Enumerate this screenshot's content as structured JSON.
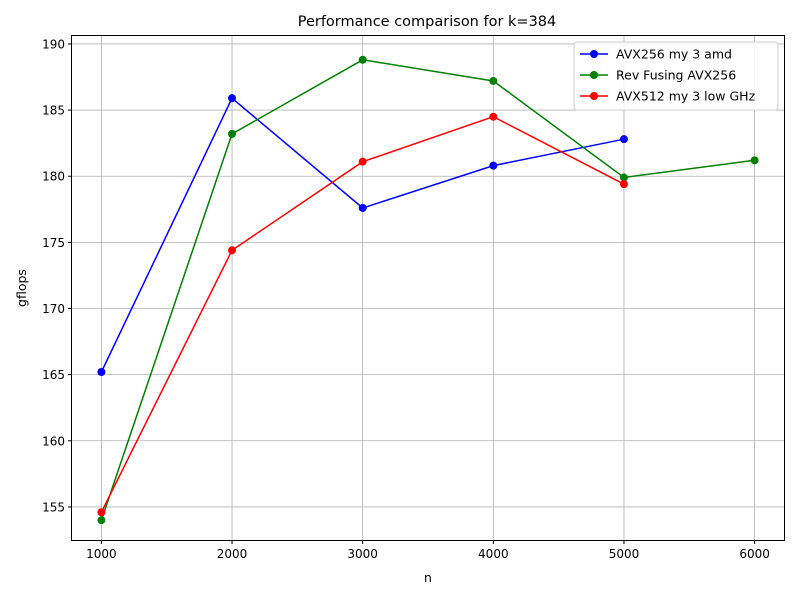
{
  "chart_data": {
    "type": "line",
    "title": "Performance comparison for k=384",
    "xlabel": "n",
    "ylabel": "gflops",
    "xlim": [
      775,
      6225
    ],
    "ylim": [
      152.5,
      190.6
    ],
    "x_ticks": [
      1000,
      2000,
      3000,
      4000,
      5000,
      6000
    ],
    "y_ticks": [
      155,
      160,
      165,
      170,
      175,
      180,
      185,
      190
    ],
    "grid": true,
    "legend_position": "top-right",
    "series": [
      {
        "name": "AVX256 my 3 amd",
        "color": "#0000ff",
        "x": [
          1000,
          2000,
          3000,
          4000,
          5000
        ],
        "values": [
          165.2,
          185.9,
          177.6,
          180.8,
          182.8
        ]
      },
      {
        "name": "Rev Fusing AVX256",
        "color": "#008000",
        "x": [
          1000,
          2000,
          3000,
          4000,
          5000,
          6000
        ],
        "values": [
          154.0,
          183.2,
          188.8,
          187.2,
          179.9,
          181.2
        ]
      },
      {
        "name": "AVX512 my 3 low GHz",
        "color": "#ff0000",
        "x": [
          1000,
          2000,
          3000,
          4000,
          5000
        ],
        "values": [
          154.6,
          174.4,
          181.1,
          184.5,
          179.4
        ]
      }
    ]
  }
}
